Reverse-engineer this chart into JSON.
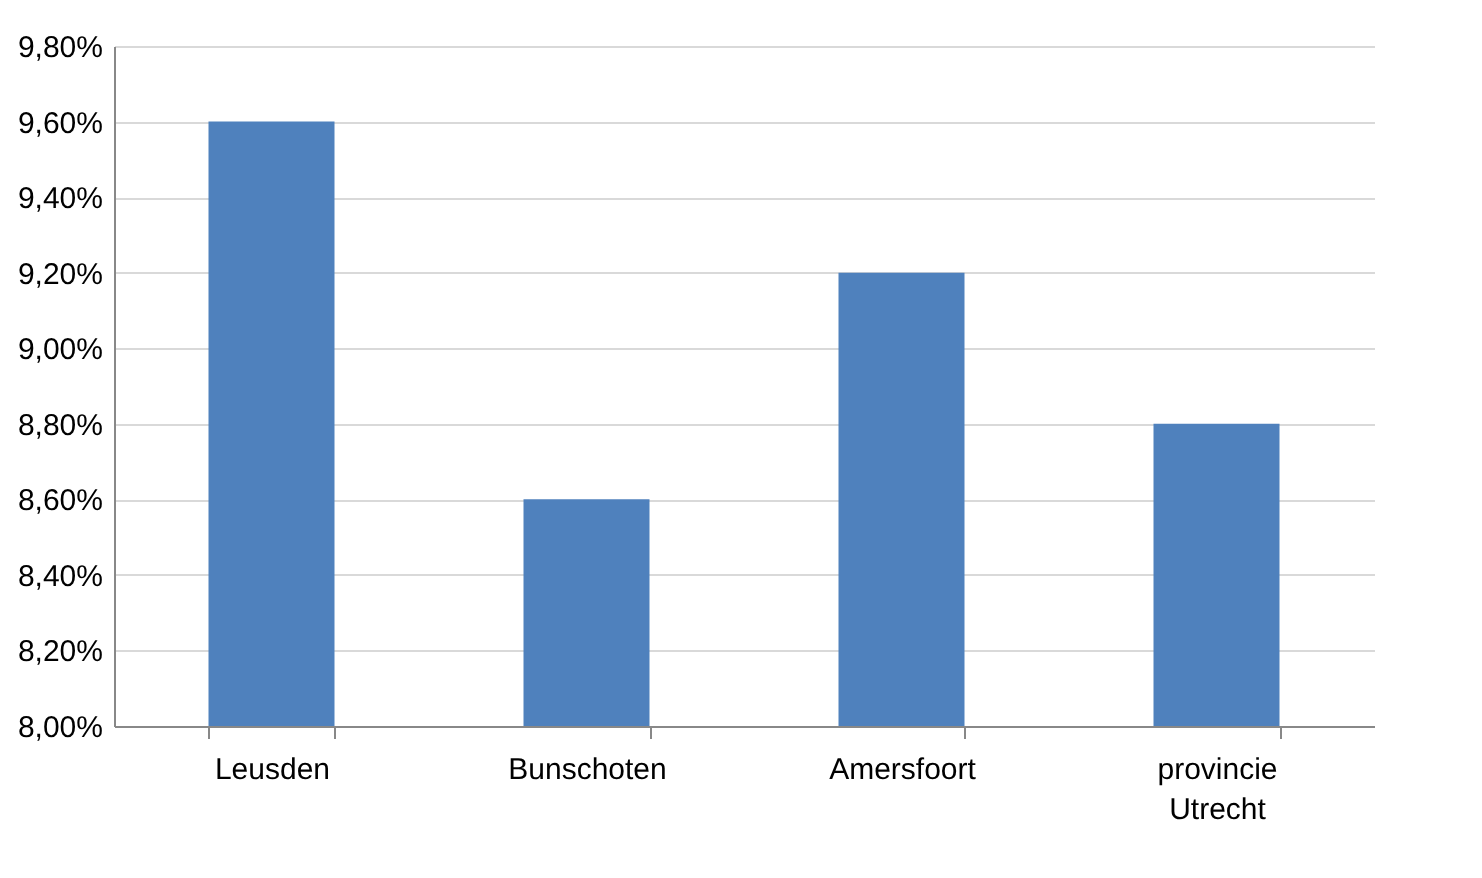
{
  "chart_data": {
    "type": "bar",
    "categories": [
      "Leusden",
      "Bunschoten",
      "Amersfoort",
      "provincie Utrecht"
    ],
    "values": [
      9.6,
      8.6,
      9.2,
      8.8
    ],
    "color": "#4f81bd",
    "ylim": [
      8.0,
      9.8
    ],
    "yticks": [
      {
        "value": 8.0,
        "label": "8,00%"
      },
      {
        "value": 8.2,
        "label": "8,20%"
      },
      {
        "value": 8.4,
        "label": "8,40%"
      },
      {
        "value": 8.6,
        "label": "8,60%"
      },
      {
        "value": 8.8,
        "label": "8,80%"
      },
      {
        "value": 9.0,
        "label": "9,00%"
      },
      {
        "value": 9.2,
        "label": "9,20%"
      },
      {
        "value": 9.4,
        "label": "9,40%"
      },
      {
        "value": 9.6,
        "label": "9,60%"
      },
      {
        "value": 9.8,
        "label": "9,80%"
      }
    ],
    "grid": true
  }
}
